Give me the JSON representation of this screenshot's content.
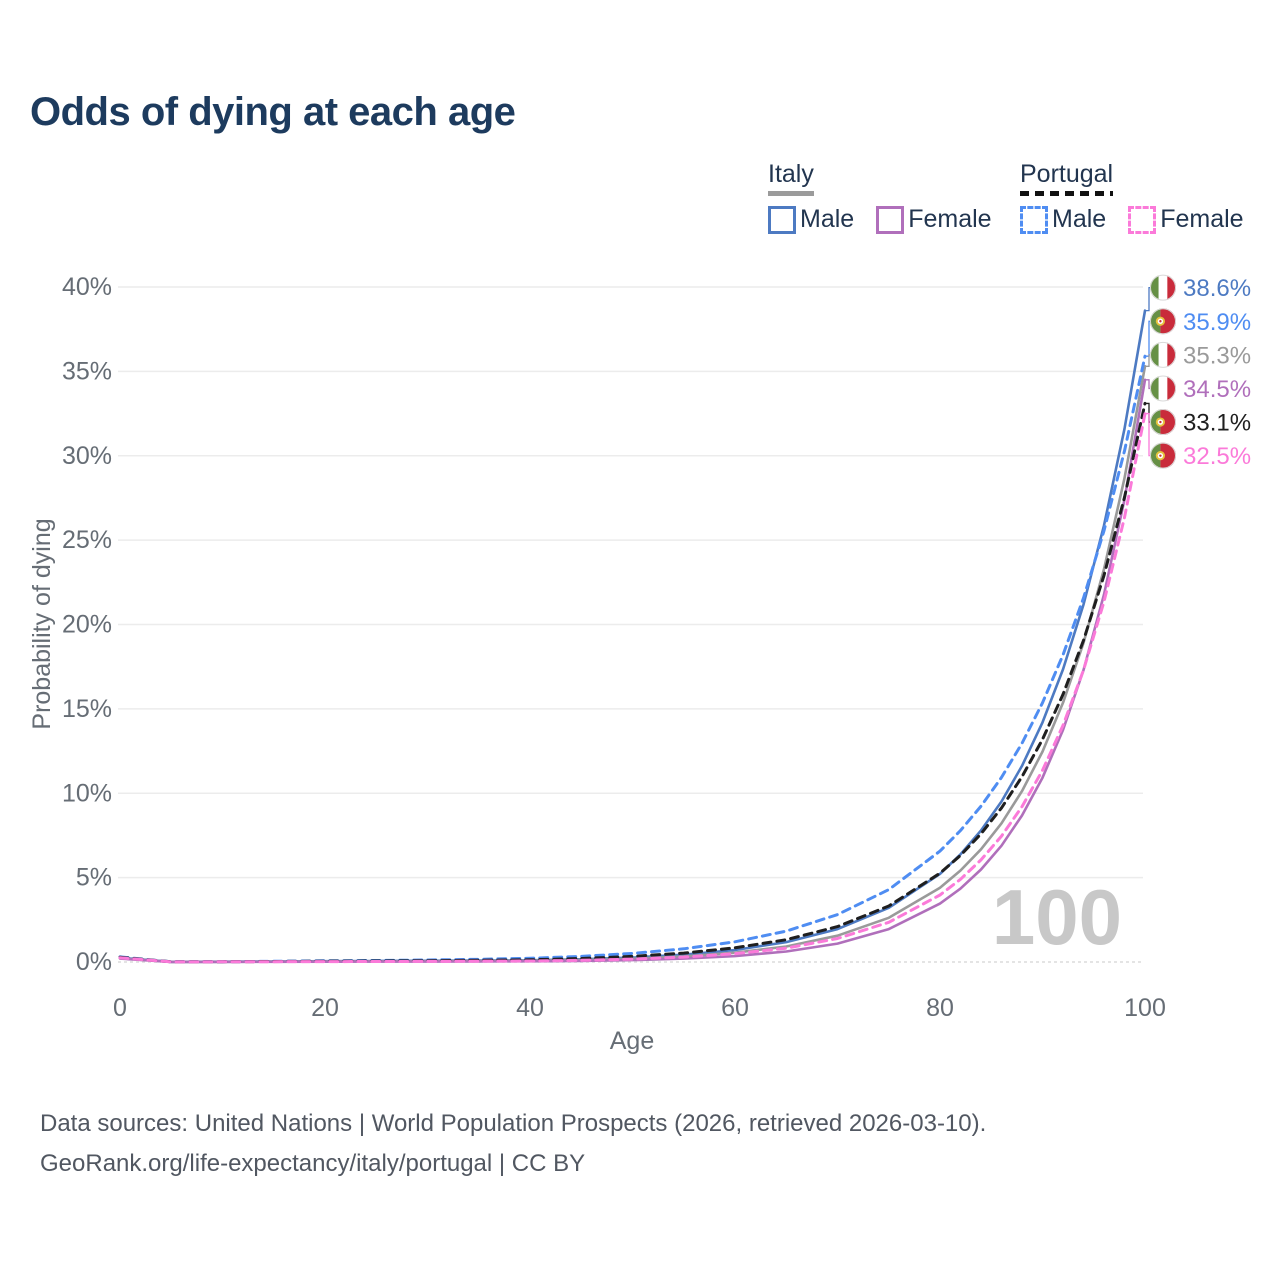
{
  "title": "Odds of dying at each age",
  "legend": {
    "groups": [
      {
        "label": "Italy",
        "line_style": "solid",
        "items": [
          {
            "label": "Male"
          },
          {
            "label": "Female"
          }
        ]
      },
      {
        "label": "Portugal",
        "line_style": "dashed",
        "items": [
          {
            "label": "Male"
          },
          {
            "label": "Female"
          }
        ]
      }
    ]
  },
  "chart_data": {
    "type": "line",
    "title": "Odds of dying at each age",
    "xlabel": "Age",
    "ylabel": "Probability of dying",
    "xlim": [
      0,
      100
    ],
    "ylim": [
      0,
      40
    ],
    "x_ticks": [
      0,
      20,
      40,
      60,
      80,
      100
    ],
    "y_ticks": [
      0,
      5,
      10,
      15,
      20,
      25,
      30,
      35,
      40
    ],
    "y_tick_suffix": "%",
    "grid": "horizontal",
    "legend_position": "top-right",
    "watermark_age": "100",
    "x": [
      0,
      5,
      10,
      15,
      20,
      25,
      30,
      35,
      40,
      45,
      50,
      55,
      60,
      65,
      70,
      75,
      80,
      82,
      84,
      86,
      88,
      90,
      92,
      94,
      96,
      98,
      100
    ],
    "series": [
      {
        "name": "Italy Male",
        "country": "italy",
        "sex": "male",
        "color": "#4d7ac2",
        "label_color": "#4d7ac2",
        "dash": "solid",
        "end_label": "38.6%",
        "values": [
          0.25,
          0.01,
          0.015,
          0.03,
          0.05,
          0.06,
          0.07,
          0.08,
          0.1,
          0.16,
          0.26,
          0.43,
          0.71,
          1.18,
          1.95,
          3.21,
          5.22,
          6.38,
          7.79,
          9.51,
          11.62,
          14.2,
          17.34,
          21.18,
          25.87,
          31.6,
          38.6
        ]
      },
      {
        "name": "Portugal Male",
        "country": "portugal",
        "sex": "male",
        "color": "#4f8df2",
        "label_color": "#4f8df2",
        "dash": "dashed",
        "end_label": "35.9%",
        "values": [
          0.3,
          0.013,
          0.02,
          0.04,
          0.07,
          0.09,
          0.12,
          0.16,
          0.22,
          0.33,
          0.51,
          0.78,
          1.2,
          1.83,
          2.81,
          4.29,
          6.57,
          7.79,
          9.23,
          10.94,
          12.96,
          15.36,
          18.2,
          21.57,
          25.56,
          30.29,
          35.9
        ]
      },
      {
        "name": "Italy",
        "country": "italy",
        "sex": "both",
        "color": "#9a9a9a",
        "label_color": "#9a9a9a",
        "dash": "solid",
        "end_label": "35.3%",
        "values": [
          0.22,
          0.008,
          0.012,
          0.022,
          0.036,
          0.042,
          0.05,
          0.06,
          0.075,
          0.12,
          0.19,
          0.33,
          0.55,
          0.92,
          1.56,
          2.62,
          4.4,
          5.42,
          6.68,
          8.22,
          10.13,
          12.47,
          15.36,
          18.91,
          23.28,
          28.67,
          35.3
        ]
      },
      {
        "name": "Italy Female",
        "country": "italy",
        "sex": "female",
        "color": "#b06fbb",
        "label_color": "#b06fbb",
        "dash": "solid",
        "end_label": "34.5%",
        "values": [
          0.2,
          0.006,
          0.008,
          0.012,
          0.018,
          0.021,
          0.025,
          0.03,
          0.04,
          0.065,
          0.11,
          0.2,
          0.35,
          0.62,
          1.09,
          1.95,
          3.46,
          4.35,
          5.48,
          6.89,
          8.68,
          10.92,
          13.75,
          17.3,
          21.78,
          27.41,
          34.5
        ]
      },
      {
        "name": "Portugal",
        "country": "portugal",
        "sex": "both",
        "color": "#1f1f1f",
        "label_color": "#1f1f1f",
        "dash": "dashed",
        "end_label": "33.1%",
        "values": [
          0.28,
          0.01,
          0.015,
          0.03,
          0.05,
          0.06,
          0.075,
          0.1,
          0.13,
          0.21,
          0.33,
          0.53,
          0.84,
          1.32,
          2.1,
          3.32,
          5.26,
          6.32,
          7.6,
          9.13,
          10.98,
          13.19,
          15.86,
          19.06,
          22.91,
          27.54,
          33.1
        ]
      },
      {
        "name": "Portugal Female",
        "country": "portugal",
        "sex": "female",
        "color": "#fb7ad9",
        "label_color": "#fb7ad9",
        "dash": "dashed",
        "end_label": "32.5%",
        "values": [
          0.25,
          0.007,
          0.009,
          0.016,
          0.026,
          0.031,
          0.037,
          0.047,
          0.062,
          0.1,
          0.17,
          0.29,
          0.49,
          0.82,
          1.39,
          2.35,
          3.97,
          4.9,
          6.05,
          7.46,
          9.21,
          11.36,
          14.02,
          17.3,
          21.35,
          26.34,
          32.5
        ]
      }
    ],
    "flag_colors": {
      "green": "#669045",
      "red": "#c92b3b",
      "white": "#ffffff",
      "emblem_yellow": "#e6c33c"
    }
  },
  "footer": {
    "line1": "Data sources: United Nations | World Population Prospects (2026, retrieved 2026-03-10).",
    "line2": "GeoRank.org/life-expectancy/italy/portugal | CC BY"
  }
}
